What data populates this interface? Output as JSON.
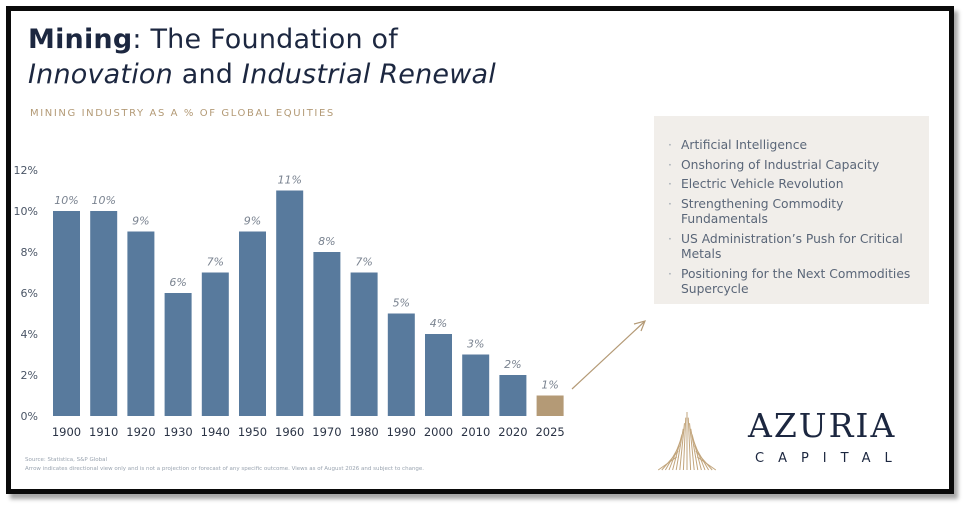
{
  "slide": {
    "title_bold": "Mining",
    "title_rest": ": The Foundation of",
    "title_line2_it1": "Innovation",
    "title_line2_mid": " and ",
    "title_line2_it2": "Industrial Renewal",
    "subtitle": "MINING INDUSTRY AS A % OF GLOBAL EQUITIES"
  },
  "panel": {
    "items": [
      "Artificial Intelligence",
      "Onshoring of Industrial Capacity",
      "Electric Vehicle Revolution",
      "Strengthening Commodity Fundamentals",
      "US Administration’s Push for Critical Metals",
      "Positioning for the Next Commodities Supercycle"
    ]
  },
  "footer": {
    "source": "Source: Statistica, S&P Global",
    "note": "Arrow indicates directional view only and is not a projection or forecast of any specific outcome. Views as of August 2026 and subject to change."
  },
  "logo": {
    "name": "AZURIA",
    "sub": "CAPITAL"
  },
  "colors": {
    "bar": "#587a9d",
    "highlight": "#b49a76",
    "title": "#1c2740",
    "accent": "#b39a76",
    "panel": "#f1eeea"
  },
  "chart_data": {
    "type": "bar",
    "categories": [
      "1900",
      "1910",
      "1920",
      "1930",
      "1940",
      "1950",
      "1960",
      "1970",
      "1980",
      "1990",
      "2000",
      "2010",
      "2020",
      "2025"
    ],
    "values": [
      10,
      10,
      9,
      6,
      7,
      9,
      11,
      8,
      7,
      5,
      4,
      3,
      2,
      1
    ],
    "data_labels": [
      "10%",
      "10%",
      "9%",
      "6%",
      "7%",
      "9%",
      "11%",
      "8%",
      "7%",
      "5%",
      "4%",
      "3%",
      "2%",
      "1%"
    ],
    "highlight_category": "2025",
    "yticks": [
      "0%",
      "2%",
      "4%",
      "6%",
      "8%",
      "10%",
      "12%"
    ],
    "ylim": [
      0,
      12
    ],
    "title": "MINING INDUSTRY AS A % OF GLOBAL EQUITIES",
    "xlabel": "",
    "ylabel": "",
    "grid": false,
    "legend": false,
    "annotation": "upward arrow after 2025"
  }
}
